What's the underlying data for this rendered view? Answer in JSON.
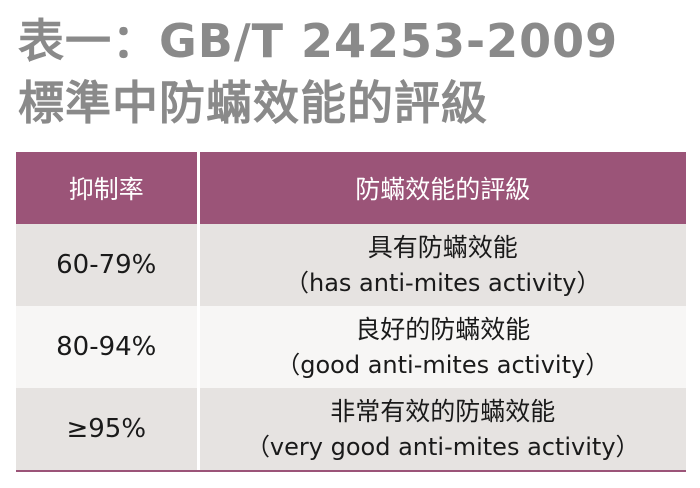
{
  "title": {
    "line1": "表一：GB/T 24253-2009",
    "line2": "標準中防蟎效能的評級"
  },
  "table": {
    "headers": {
      "rate": "抑制率",
      "efficacy": "防蟎效能的評級"
    },
    "rows": [
      {
        "rate": "60-79%",
        "efficacy_zh": "具有防蟎效能",
        "efficacy_en": "（has anti-mites activity）"
      },
      {
        "rate": "80-94%",
        "efficacy_zh": "良好的防蟎效能",
        "efficacy_en": "（good anti-mites activity）"
      },
      {
        "rate": "≥95%",
        "efficacy_zh": "非常有效的防蟎效能",
        "efficacy_en": "（very good anti-mites activity）"
      }
    ]
  },
  "colors": {
    "title": "#8a8a8a",
    "header_bg": "#9b5478",
    "row_dark": "#e6e3e1",
    "row_light": "#f7f6f5"
  }
}
